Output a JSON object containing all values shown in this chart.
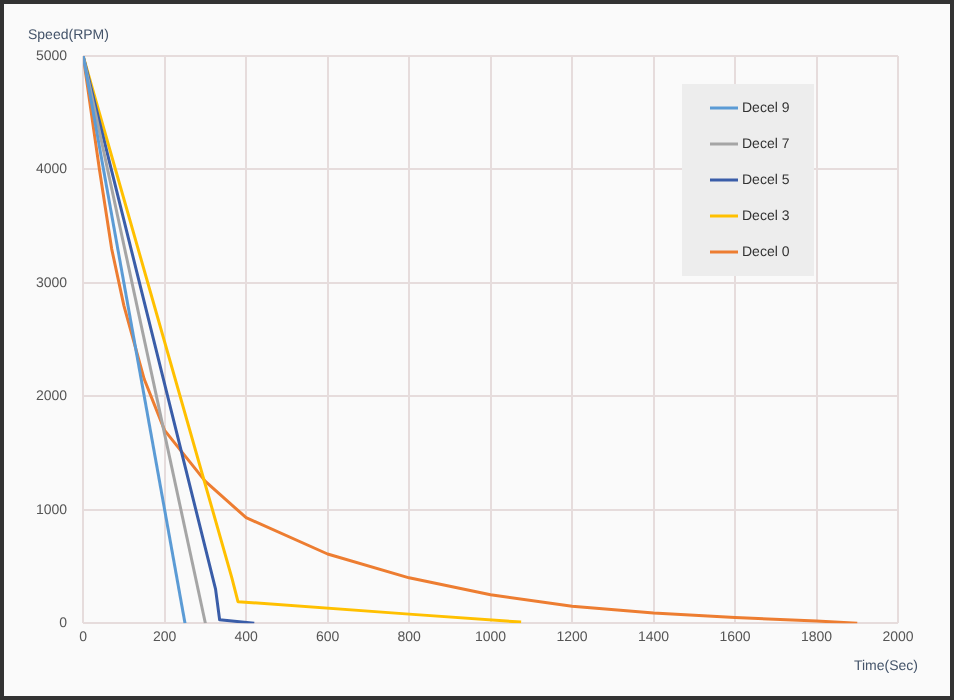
{
  "chart_data": {
    "type": "line",
    "xlabel": "Time(Sec)",
    "ylabel": "Speed(RPM)",
    "xlim": [
      0,
      2000
    ],
    "xticks": [
      0,
      200,
      400,
      600,
      800,
      1000,
      1200,
      1400,
      1600,
      1800,
      2000
    ],
    "ylim": [
      0,
      5000
    ],
    "yticks": [
      0,
      1000,
      2000,
      3000,
      4000,
      5000
    ],
    "grid": true,
    "legend": "top right",
    "marker": "none",
    "line_style": "solid",
    "series": [
      {
        "name": "Decel 9",
        "color": "#5b9bd5",
        "x": [
          0,
          250
        ],
        "values": [
          5000,
          0
        ]
      },
      {
        "name": "Decel 7",
        "color": "#a5a5a5",
        "x": [
          0,
          300
        ],
        "values": [
          5000,
          0
        ]
      },
      {
        "name": "Decel 5",
        "color": "#3a5da8",
        "x": [
          0,
          325,
          335,
          420
        ],
        "values": [
          5000,
          300,
          30,
          0
        ]
      },
      {
        "name": "Decel 3",
        "color": "#ffc000",
        "x": [
          0,
          365,
          380,
          800,
          1075
        ],
        "values": [
          5000,
          400,
          190,
          80,
          10
        ]
      },
      {
        "name": "Decel 0",
        "color": "#ed7d31",
        "x": [
          0,
          40,
          70,
          100,
          150,
          200,
          300,
          400,
          600,
          800,
          1000,
          1200,
          1400,
          1600,
          1800,
          1900
        ],
        "values": [
          5000,
          4000,
          3300,
          2800,
          2150,
          1700,
          1250,
          930,
          610,
          400,
          250,
          150,
          90,
          50,
          20,
          0
        ]
      }
    ]
  }
}
